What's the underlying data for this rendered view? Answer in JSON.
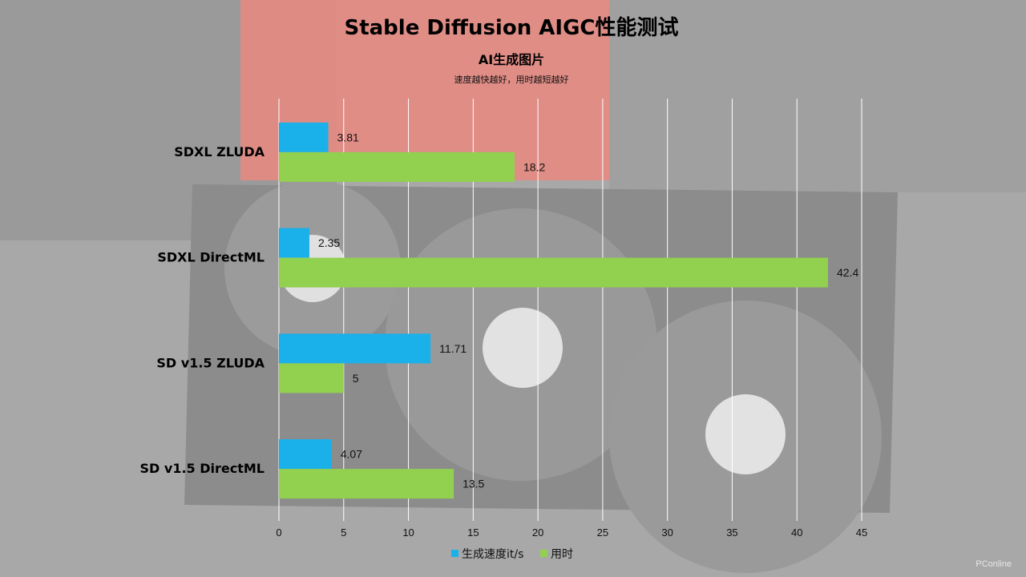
{
  "chart_data": {
    "type": "bar",
    "orientation": "horizontal",
    "title": "Stable Diffusion AIGC性能测试",
    "subtitle": "AI生成图片",
    "note": "速度越快越好，用时越短越好",
    "categories": [
      "SDXL ZLUDA",
      "SDXL DirectML",
      "SD v1.5 ZLUDA",
      "SD v1.5 DirectML"
    ],
    "series": [
      {
        "name": "生成速度it/s",
        "color": "#1ab0ea",
        "values": [
          3.81,
          2.35,
          11.71,
          4.07
        ]
      },
      {
        "name": "用时",
        "color": "#92d050",
        "values": [
          18.2,
          42.4,
          5,
          13.5
        ]
      }
    ],
    "xlim": [
      0,
      45
    ],
    "xticks": [
      0,
      5,
      10,
      15,
      20,
      25,
      30,
      35,
      40,
      45
    ],
    "grid": true,
    "legend_position": "bottom"
  },
  "watermark": "PConline"
}
